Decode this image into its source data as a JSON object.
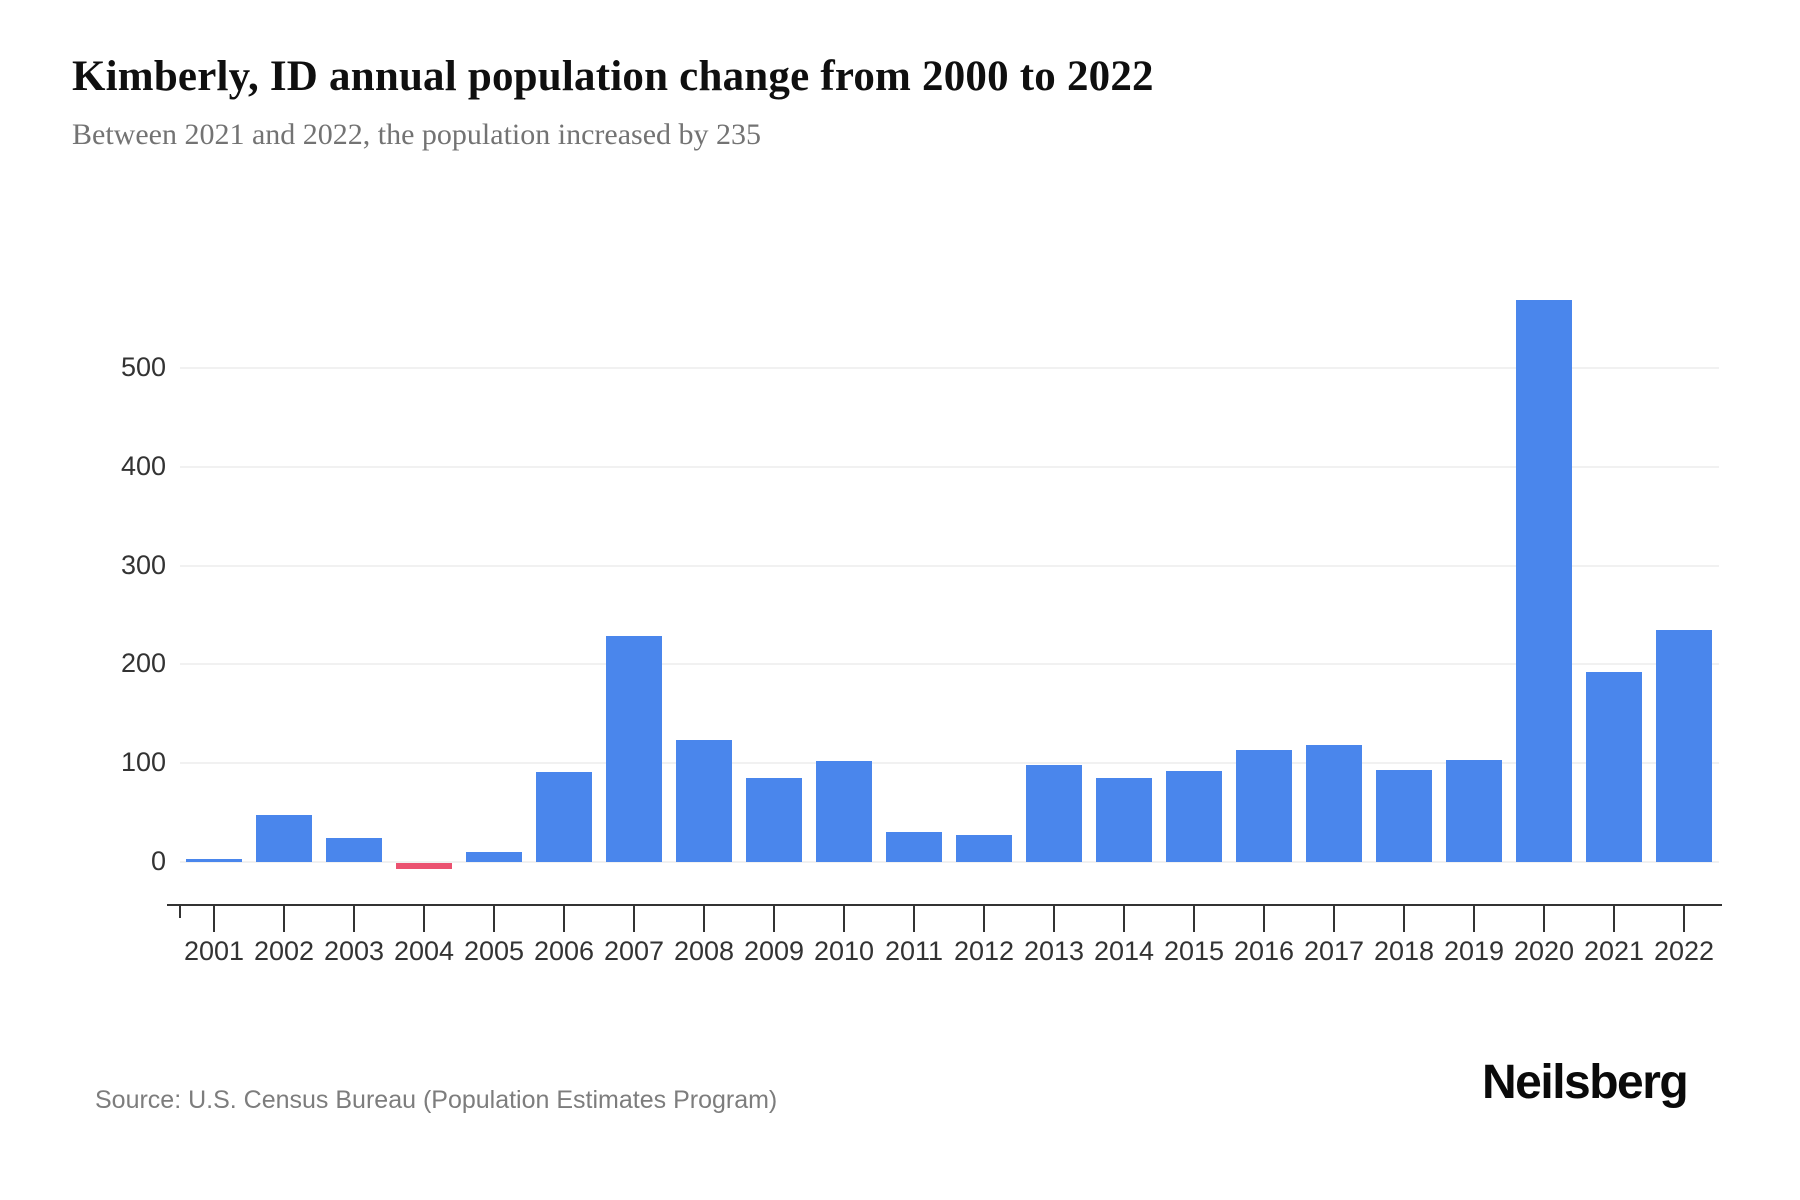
{
  "header": {
    "title": "Kimberly, ID annual population change from 2000 to 2022",
    "subtitle": "Between 2021 and 2022, the population increased by 235"
  },
  "footer": {
    "source": "Source: U.S. Census Bureau (Population Estimates Program)",
    "brand": "Neilsberg"
  },
  "colors": {
    "bar_positive": "#4a86ec",
    "bar_negative": "#eb5270",
    "grid": "#f1f1f1",
    "axis": "#333333",
    "tick": "#333333",
    "axis_label": "#333333",
    "title": "#0f0f0f",
    "subtitle": "#737373",
    "source": "#7d7d7d"
  },
  "chart_data": {
    "type": "bar",
    "title": "Kimberly, ID annual population change from 2000 to 2022",
    "subtitle": "Between 2021 and 2022, the population increased by 235",
    "categories": [
      "2001",
      "2002",
      "2003",
      "2004",
      "2005",
      "2006",
      "2007",
      "2008",
      "2009",
      "2010",
      "2011",
      "2012",
      "2013",
      "2014",
      "2015",
      "2016",
      "2017",
      "2018",
      "2019",
      "2020",
      "2021",
      "2022"
    ],
    "values": [
      3,
      48,
      24,
      -6,
      10,
      91,
      229,
      123,
      85,
      102,
      30,
      27,
      98,
      85,
      92,
      113,
      118,
      93,
      103,
      569,
      192,
      235
    ],
    "xlabel": "",
    "ylabel": "",
    "yticks": [
      0,
      100,
      200,
      300,
      400,
      500
    ],
    "ylim": [
      -44,
      610
    ],
    "grid": "horizontal",
    "legend": "none"
  }
}
